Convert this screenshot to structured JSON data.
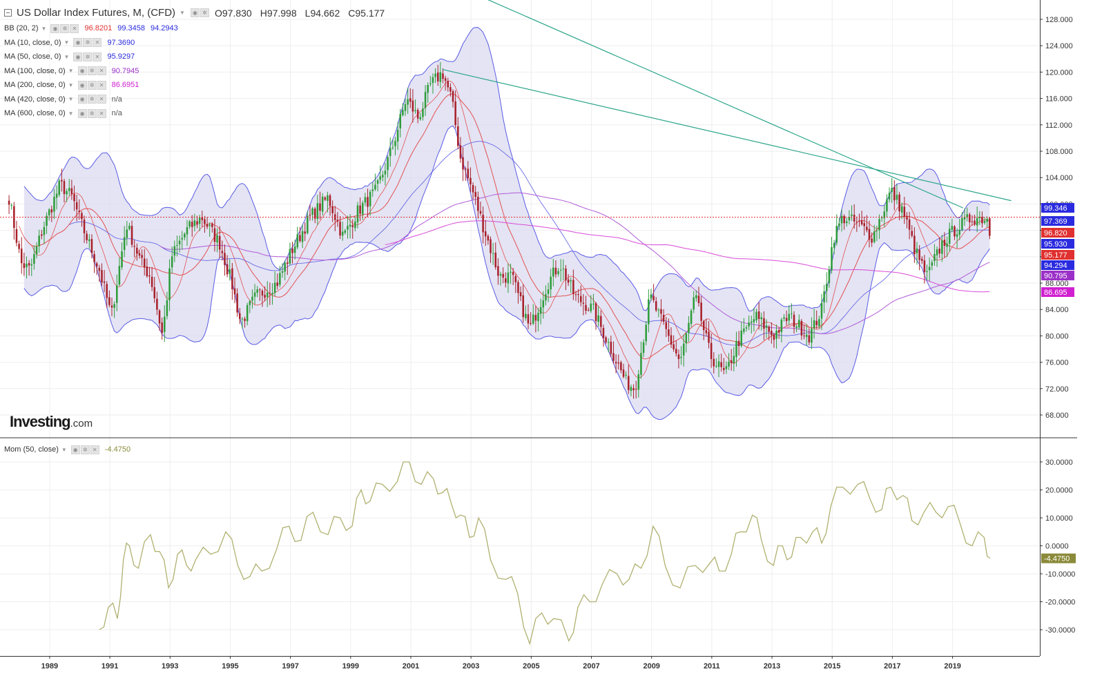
{
  "header": {
    "title": "US Dollar Index Futures, M, (CFD)",
    "ohlc": [
      {
        "key": "O",
        "value": "97.830"
      },
      {
        "key": "H",
        "value": "97.998"
      },
      {
        "key": "L",
        "value": "94.662"
      },
      {
        "key": "C",
        "value": "95.177"
      }
    ]
  },
  "indicators": [
    {
      "label": "BB (20, 2)",
      "values": [
        {
          "text": "96.8201",
          "color": "#e03030"
        },
        {
          "text": "99.3458",
          "color": "#2a2adf"
        },
        {
          "text": "94.2943",
          "color": "#2a2adf"
        }
      ]
    },
    {
      "label": "MA (10, close, 0)",
      "values": [
        {
          "text": "97.3690",
          "color": "#2a2adf"
        }
      ]
    },
    {
      "label": "MA (50, close, 0)",
      "values": [
        {
          "text": "95.9297",
          "color": "#2a2adf"
        }
      ]
    },
    {
      "label": "MA (100, close, 0)",
      "values": [
        {
          "text": "90.7945",
          "color": "#9b30c8"
        }
      ]
    },
    {
      "label": "MA (200, close, 0)",
      "values": [
        {
          "text": "86.6951",
          "color": "#d020d0"
        }
      ]
    },
    {
      "label": "MA (420, close, 0)",
      "values": [
        {
          "text": "n/a",
          "color": "#555555"
        }
      ]
    },
    {
      "label": "MA (600, close, 0)",
      "values": [
        {
          "text": "n/a",
          "color": "#555555"
        }
      ]
    }
  ],
  "momentum_legend": {
    "label": "Mom (50, close)",
    "value": "-4.4750",
    "color": "#8a8a3a"
  },
  "logo": {
    "brand": "Investing",
    "suffix": ".com"
  },
  "colors": {
    "up": "#2e9c3a",
    "down": "#a8202a",
    "bb_fill": "#d8d8f0",
    "bb_line": "#5a5ae6",
    "ma_red": "#e35050",
    "ma100": "#b05ad8",
    "ma200": "#d84ad8",
    "trend": "#2aa58a",
    "momentum": "#b0b070",
    "price_line": "#e03030"
  },
  "chart_data": [
    {
      "type": "candlestick",
      "title": "US Dollar Index Futures, M, (CFD)",
      "x_tick_labels": [
        "1989",
        "1991",
        "1993",
        "1995",
        "1997",
        "1999",
        "2001",
        "2003",
        "2005",
        "2007",
        "2009",
        "2011",
        "2013",
        "2015",
        "2017",
        "2019"
      ],
      "ylim": [
        64,
        130
      ],
      "y_tick_labels": [
        "128.000",
        "124.000",
        "120.000",
        "116.000",
        "112.000",
        "108.000",
        "104.000",
        "100.000",
        "96.000",
        "92.000",
        "88.000",
        "84.000",
        "80.000",
        "76.000",
        "72.000",
        "68.000"
      ],
      "grid": true,
      "close_anchors": [
        {
          "t": 1987.6,
          "v": 101
        },
        {
          "t": 1988.0,
          "v": 91
        },
        {
          "t": 1988.3,
          "v": 90
        },
        {
          "t": 1988.7,
          "v": 96
        },
        {
          "t": 1989.3,
          "v": 103
        },
        {
          "t": 1989.7,
          "v": 101
        },
        {
          "t": 1990.0,
          "v": 97
        },
        {
          "t": 1990.6,
          "v": 90
        },
        {
          "t": 1991.0,
          "v": 83
        },
        {
          "t": 1991.5,
          "v": 97
        },
        {
          "t": 1992.0,
          "v": 91
        },
        {
          "t": 1992.3,
          "v": 89
        },
        {
          "t": 1992.7,
          "v": 80
        },
        {
          "t": 1993.0,
          "v": 92
        },
        {
          "t": 1993.5,
          "v": 96
        },
        {
          "t": 1994.0,
          "v": 98
        },
        {
          "t": 1994.6,
          "v": 94
        },
        {
          "t": 1995.0,
          "v": 88
        },
        {
          "t": 1995.3,
          "v": 82
        },
        {
          "t": 1995.8,
          "v": 86
        },
        {
          "t": 1996.5,
          "v": 88
        },
        {
          "t": 1997.0,
          "v": 93
        },
        {
          "t": 1997.6,
          "v": 98
        },
        {
          "t": 1998.2,
          "v": 101
        },
        {
          "t": 1998.7,
          "v": 95
        },
        {
          "t": 1999.2,
          "v": 99
        },
        {
          "t": 1999.8,
          "v": 102
        },
        {
          "t": 2000.3,
          "v": 108
        },
        {
          "t": 2000.8,
          "v": 116
        },
        {
          "t": 2001.2,
          "v": 113
        },
        {
          "t": 2001.6,
          "v": 118
        },
        {
          "t": 2002.0,
          "v": 120
        },
        {
          "t": 2002.3,
          "v": 116
        },
        {
          "t": 2002.6,
          "v": 107
        },
        {
          "t": 2003.0,
          "v": 102
        },
        {
          "t": 2003.4,
          "v": 96
        },
        {
          "t": 2003.9,
          "v": 89
        },
        {
          "t": 2004.3,
          "v": 89
        },
        {
          "t": 2004.9,
          "v": 81
        },
        {
          "t": 2005.5,
          "v": 88
        },
        {
          "t": 2005.9,
          "v": 91
        },
        {
          "t": 2006.4,
          "v": 86
        },
        {
          "t": 2007.0,
          "v": 84
        },
        {
          "t": 2007.6,
          "v": 78
        },
        {
          "t": 2008.1,
          "v": 73
        },
        {
          "t": 2008.4,
          "v": 72
        },
        {
          "t": 2008.9,
          "v": 86
        },
        {
          "t": 2009.3,
          "v": 82
        },
        {
          "t": 2009.9,
          "v": 76
        },
        {
          "t": 2010.4,
          "v": 86
        },
        {
          "t": 2010.9,
          "v": 77
        },
        {
          "t": 2011.4,
          "v": 74
        },
        {
          "t": 2011.8,
          "v": 79
        },
        {
          "t": 2012.4,
          "v": 83
        },
        {
          "t": 2013.0,
          "v": 80
        },
        {
          "t": 2013.5,
          "v": 83
        },
        {
          "t": 2014.2,
          "v": 80
        },
        {
          "t": 2014.6,
          "v": 84
        },
        {
          "t": 2015.0,
          "v": 95
        },
        {
          "t": 2015.3,
          "v": 98
        },
        {
          "t": 2015.8,
          "v": 97
        },
        {
          "t": 2016.3,
          "v": 95
        },
        {
          "t": 2016.9,
          "v": 102
        },
        {
          "t": 2017.3,
          "v": 99
        },
        {
          "t": 2017.7,
          "v": 93
        },
        {
          "t": 2018.1,
          "v": 89
        },
        {
          "t": 2018.6,
          "v": 94
        },
        {
          "t": 2019.0,
          "v": 96
        },
        {
          "t": 2019.6,
          "v": 98
        },
        {
          "t": 2020.1,
          "v": 97.8
        },
        {
          "t": 2020.2,
          "v": 95.177
        }
      ],
      "overlays": {
        "bollinger_last": {
          "mid": 96.8201,
          "upper": 99.3458,
          "lower": 94.2943
        },
        "ma10_last": 97.369,
        "ma50_last": 95.9297,
        "ma100_last": 90.7945,
        "ma200_last": 86.6951
      },
      "trendlines": [
        {
          "from": {
            "t": 2002.0,
            "v": 120.4
          },
          "to": {
            "t": 2020.9,
            "v": 100.5
          }
        },
        {
          "from": {
            "t": 2003.4,
            "v": 131.2
          },
          "to": {
            "t": 2019.3,
            "v": 99.4
          }
        }
      ],
      "last_price": 95.177,
      "axis_badges": [
        {
          "text": "99.346",
          "color": "#2a2adf"
        },
        {
          "text": "97.369",
          "color": "#2a2adf"
        },
        {
          "text": "96.820",
          "color": "#e03030"
        },
        {
          "text": "95.930",
          "color": "#2a2adf"
        },
        {
          "text": "95.177",
          "color": "#e03030"
        },
        {
          "text": "94.294",
          "color": "#2a2adf"
        },
        {
          "text": "90.795",
          "color": "#9b30c8"
        },
        {
          "text": "86.695",
          "color": "#d020d0"
        }
      ]
    },
    {
      "type": "line",
      "title": "Mom (50, close)",
      "ylim": [
        -36,
        32
      ],
      "y_tick_labels": [
        "30.0000",
        "20.0000",
        "10.0000",
        "0.0000",
        "-10.0000",
        "-20.0000",
        "-30.0000"
      ],
      "series": [
        {
          "name": "Mom (50, close)",
          "points": [
            {
              "t": 1990.6,
              "v": -30
            },
            {
              "t": 1990.9,
              "v": -22
            },
            {
              "t": 1991.2,
              "v": -26
            },
            {
              "t": 1991.4,
              "v": -5
            },
            {
              "t": 1991.6,
              "v": 0
            },
            {
              "t": 1991.9,
              "v": -8
            },
            {
              "t": 1992.3,
              "v": 4
            },
            {
              "t": 1992.6,
              "v": -2
            },
            {
              "t": 1992.9,
              "v": -15
            },
            {
              "t": 1993.2,
              "v": -3
            },
            {
              "t": 1993.5,
              "v": -7
            },
            {
              "t": 1993.8,
              "v": -5
            },
            {
              "t": 1994.3,
              "v": -3
            },
            {
              "t": 1994.8,
              "v": 5
            },
            {
              "t": 1995.2,
              "v": -7
            },
            {
              "t": 1995.6,
              "v": -11
            },
            {
              "t": 1996.0,
              "v": -9
            },
            {
              "t": 1996.5,
              "v": -1
            },
            {
              "t": 1996.9,
              "v": 7
            },
            {
              "t": 1997.3,
              "v": 2
            },
            {
              "t": 1997.7,
              "v": 12
            },
            {
              "t": 1998.2,
              "v": 4
            },
            {
              "t": 1998.6,
              "v": 10
            },
            {
              "t": 1999.0,
              "v": 7
            },
            {
              "t": 1999.3,
              "v": 20
            },
            {
              "t": 1999.6,
              "v": 16
            },
            {
              "t": 2000.0,
              "v": 22
            },
            {
              "t": 2000.5,
              "v": 23
            },
            {
              "t": 2000.9,
              "v": 30
            },
            {
              "t": 2001.3,
              "v": 22
            },
            {
              "t": 2001.7,
              "v": 24
            },
            {
              "t": 2002.0,
              "v": 19
            },
            {
              "t": 2002.3,
              "v": 15
            },
            {
              "t": 2002.6,
              "v": 11
            },
            {
              "t": 2002.9,
              "v": 3
            },
            {
              "t": 2003.2,
              "v": 10
            },
            {
              "t": 2003.6,
              "v": -5
            },
            {
              "t": 2004.1,
              "v": -12
            },
            {
              "t": 2004.5,
              "v": -17
            },
            {
              "t": 2004.9,
              "v": -35
            },
            {
              "t": 2005.3,
              "v": -24
            },
            {
              "t": 2005.7,
              "v": -26
            },
            {
              "t": 2006.2,
              "v": -34
            },
            {
              "t": 2006.5,
              "v": -22
            },
            {
              "t": 2006.9,
              "v": -20
            },
            {
              "t": 2007.3,
              "v": -14
            },
            {
              "t": 2007.8,
              "v": -10
            },
            {
              "t": 2008.2,
              "v": -12
            },
            {
              "t": 2008.6,
              "v": -8
            },
            {
              "t": 2009.0,
              "v": 7
            },
            {
              "t": 2009.4,
              "v": -7
            },
            {
              "t": 2009.9,
              "v": -15
            },
            {
              "t": 2010.4,
              "v": -7
            },
            {
              "t": 2010.9,
              "v": -6
            },
            {
              "t": 2011.2,
              "v": -9
            },
            {
              "t": 2011.6,
              "v": -3
            },
            {
              "t": 2011.9,
              "v": 5
            },
            {
              "t": 2012.3,
              "v": 11
            },
            {
              "t": 2012.6,
              "v": 2
            },
            {
              "t": 2013.0,
              "v": -7
            },
            {
              "t": 2013.3,
              "v": 0
            },
            {
              "t": 2013.6,
              "v": -4
            },
            {
              "t": 2013.9,
              "v": 3
            },
            {
              "t": 2014.3,
              "v": 5
            },
            {
              "t": 2014.6,
              "v": 1
            },
            {
              "t": 2014.9,
              "v": 14
            },
            {
              "t": 2015.3,
              "v": 21
            },
            {
              "t": 2015.8,
              "v": 22
            },
            {
              "t": 2016.2,
              "v": 17
            },
            {
              "t": 2016.6,
              "v": 13
            },
            {
              "t": 2016.9,
              "v": 21
            },
            {
              "t": 2017.3,
              "v": 18
            },
            {
              "t": 2017.6,
              "v": 9
            },
            {
              "t": 2018.0,
              "v": 12
            },
            {
              "t": 2018.4,
              "v": 12
            },
            {
              "t": 2018.8,
              "v": 14
            },
            {
              "t": 2019.2,
              "v": 8
            },
            {
              "t": 2019.6,
              "v": 0
            },
            {
              "t": 2020.0,
              "v": 3
            },
            {
              "t": 2020.2,
              "v": -4.475
            }
          ]
        }
      ],
      "last_value_label": "-4.4750"
    }
  ]
}
